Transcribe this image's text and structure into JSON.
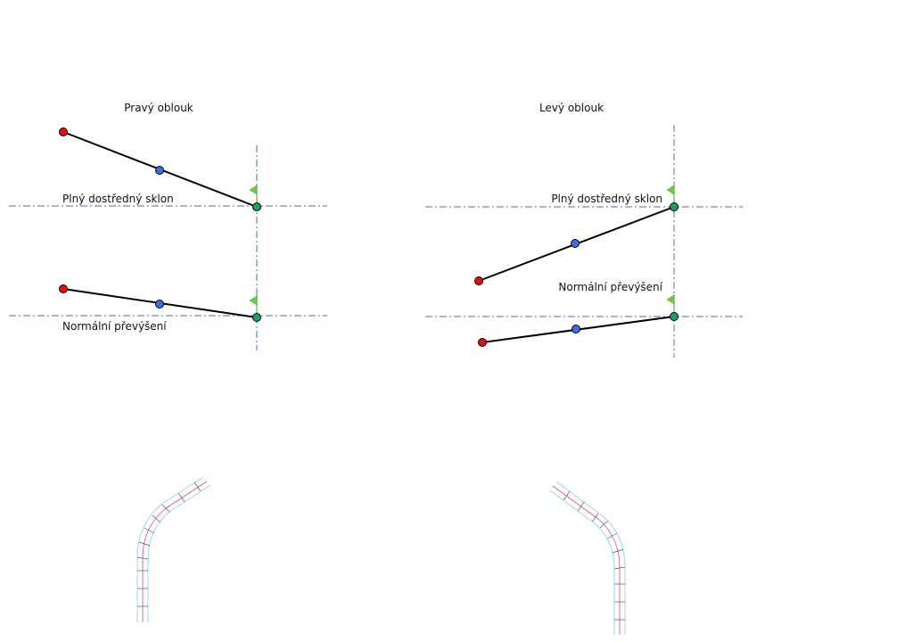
{
  "panels": [
    {
      "title": "Pravý oblouk",
      "labels": [
        "Plný dostředný sklon",
        "Normální převýšení"
      ]
    },
    {
      "title": "Levý oblouk",
      "labels": [
        "Plný dostředný sklon",
        "Normální převýšení"
      ]
    }
  ]
}
